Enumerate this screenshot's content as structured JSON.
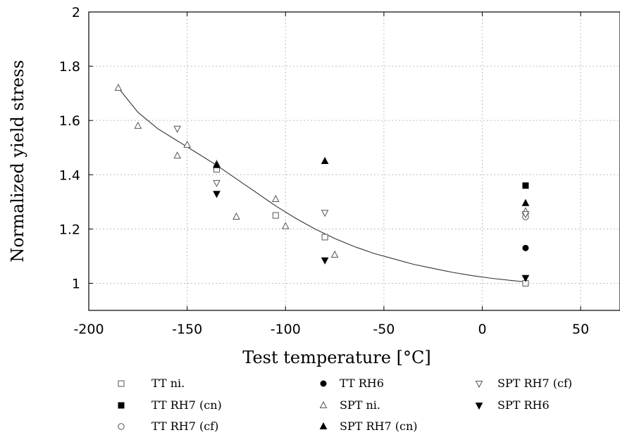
{
  "chart_data": {
    "type": "scatter",
    "title": "",
    "xlabel": "Test temperature [°C]",
    "ylabel": "Normalized yield stress",
    "xlim": [
      -200,
      70
    ],
    "ylim": [
      0.9,
      2.0
    ],
    "xticks": [
      -200,
      -150,
      -100,
      -50,
      0,
      50
    ],
    "yticks": [
      1,
      1.2,
      1.4,
      1.6,
      1.8,
      2
    ],
    "ytick_labels": [
      "1",
      "1.2",
      "1.4",
      "1.6",
      "1.8",
      "2"
    ],
    "grid": true,
    "legend_position": "bottom",
    "series": [
      {
        "name": "TT ni.",
        "marker": "square-open",
        "points": [
          [
            -135,
            1.42
          ],
          [
            -105,
            1.25
          ],
          [
            -80,
            1.17
          ],
          [
            22,
            1.0
          ]
        ]
      },
      {
        "name": "TT RH7 (cn)",
        "marker": "square-filled",
        "points": [
          [
            22,
            1.36
          ]
        ]
      },
      {
        "name": "TT RH7 (cf)",
        "marker": "circle-open",
        "points": [
          [
            22,
            1.245
          ]
        ]
      },
      {
        "name": "TT RH6",
        "marker": "circle-filled",
        "points": [
          [
            22,
            1.13
          ]
        ]
      },
      {
        "name": "SPT ni.",
        "marker": "triangle-up-open",
        "points": [
          [
            -185,
            1.72
          ],
          [
            -175,
            1.58
          ],
          [
            -155,
            1.47
          ],
          [
            -150,
            1.51
          ],
          [
            -125,
            1.245
          ],
          [
            -105,
            1.31
          ],
          [
            -100,
            1.21
          ],
          [
            -75,
            1.105
          ],
          [
            -135,
            1.44
          ],
          [
            22,
            1.265
          ]
        ]
      },
      {
        "name": "SPT RH7 (cn)",
        "marker": "triangle-up-filled",
        "points": [
          [
            -135,
            1.435
          ],
          [
            -80,
            1.45
          ],
          [
            22,
            1.295
          ]
        ]
      },
      {
        "name": "SPT RH7 (cf)",
        "marker": "triangle-down-open",
        "points": [
          [
            -155,
            1.57
          ],
          [
            -135,
            1.37
          ],
          [
            -80,
            1.26
          ],
          [
            22,
            1.255
          ]
        ]
      },
      {
        "name": "SPT RH6",
        "marker": "triangle-down-filled",
        "points": [
          [
            -135,
            1.33
          ],
          [
            -80,
            1.085
          ],
          [
            22,
            1.02
          ]
        ]
      }
    ],
    "fit_curve": [
      [
        -185,
        1.72
      ],
      [
        -175,
        1.63
      ],
      [
        -165,
        1.57
      ],
      [
        -155,
        1.525
      ],
      [
        -145,
        1.48
      ],
      [
        -135,
        1.435
      ],
      [
        -125,
        1.385
      ],
      [
        -115,
        1.335
      ],
      [
        -105,
        1.285
      ],
      [
        -95,
        1.24
      ],
      [
        -85,
        1.2
      ],
      [
        -75,
        1.165
      ],
      [
        -65,
        1.135
      ],
      [
        -55,
        1.11
      ],
      [
        -45,
        1.09
      ],
      [
        -35,
        1.07
      ],
      [
        -25,
        1.055
      ],
      [
        -15,
        1.04
      ],
      [
        -5,
        1.028
      ],
      [
        5,
        1.018
      ],
      [
        15,
        1.01
      ],
      [
        22,
        1.005
      ]
    ]
  }
}
